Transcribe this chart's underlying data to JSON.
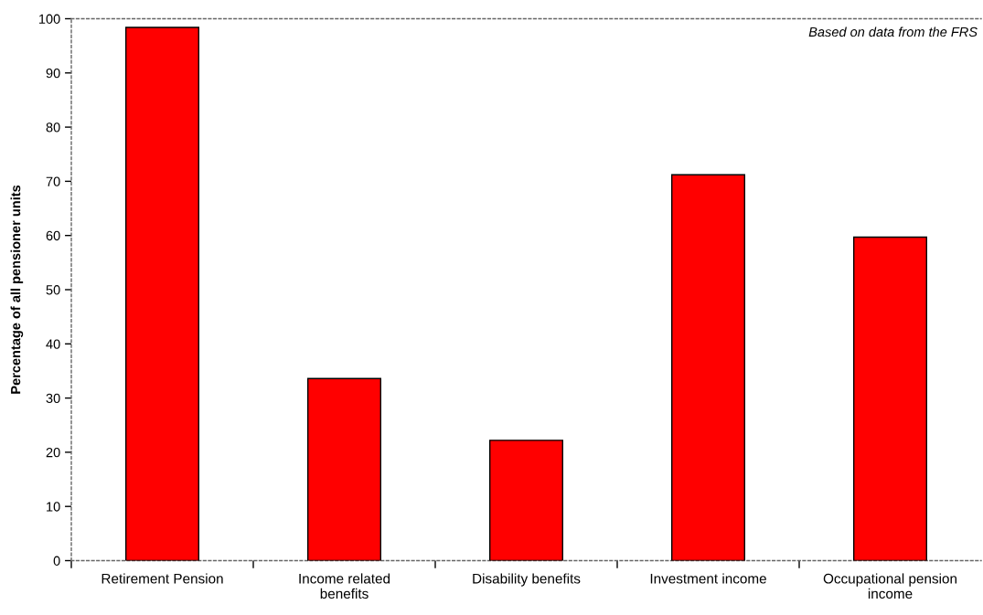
{
  "chart_data": {
    "type": "bar",
    "ylabel": "Percentage of all pensioner units",
    "categories": [
      "Retirement Pension",
      "Income related\nbenefits",
      "Disability benefits",
      "Investment income",
      "Occupational pension\nincome"
    ],
    "values": [
      98.4,
      33.6,
      22.2,
      71.2,
      59.7
    ],
    "color": "#ff0000",
    "ylim": [
      0,
      100
    ],
    "yticks": [
      0,
      10,
      20,
      30,
      40,
      50,
      60,
      70,
      80,
      90,
      100
    ],
    "grid": false,
    "legend": false,
    "annotations": [
      "Based on data from the FRS"
    ]
  }
}
